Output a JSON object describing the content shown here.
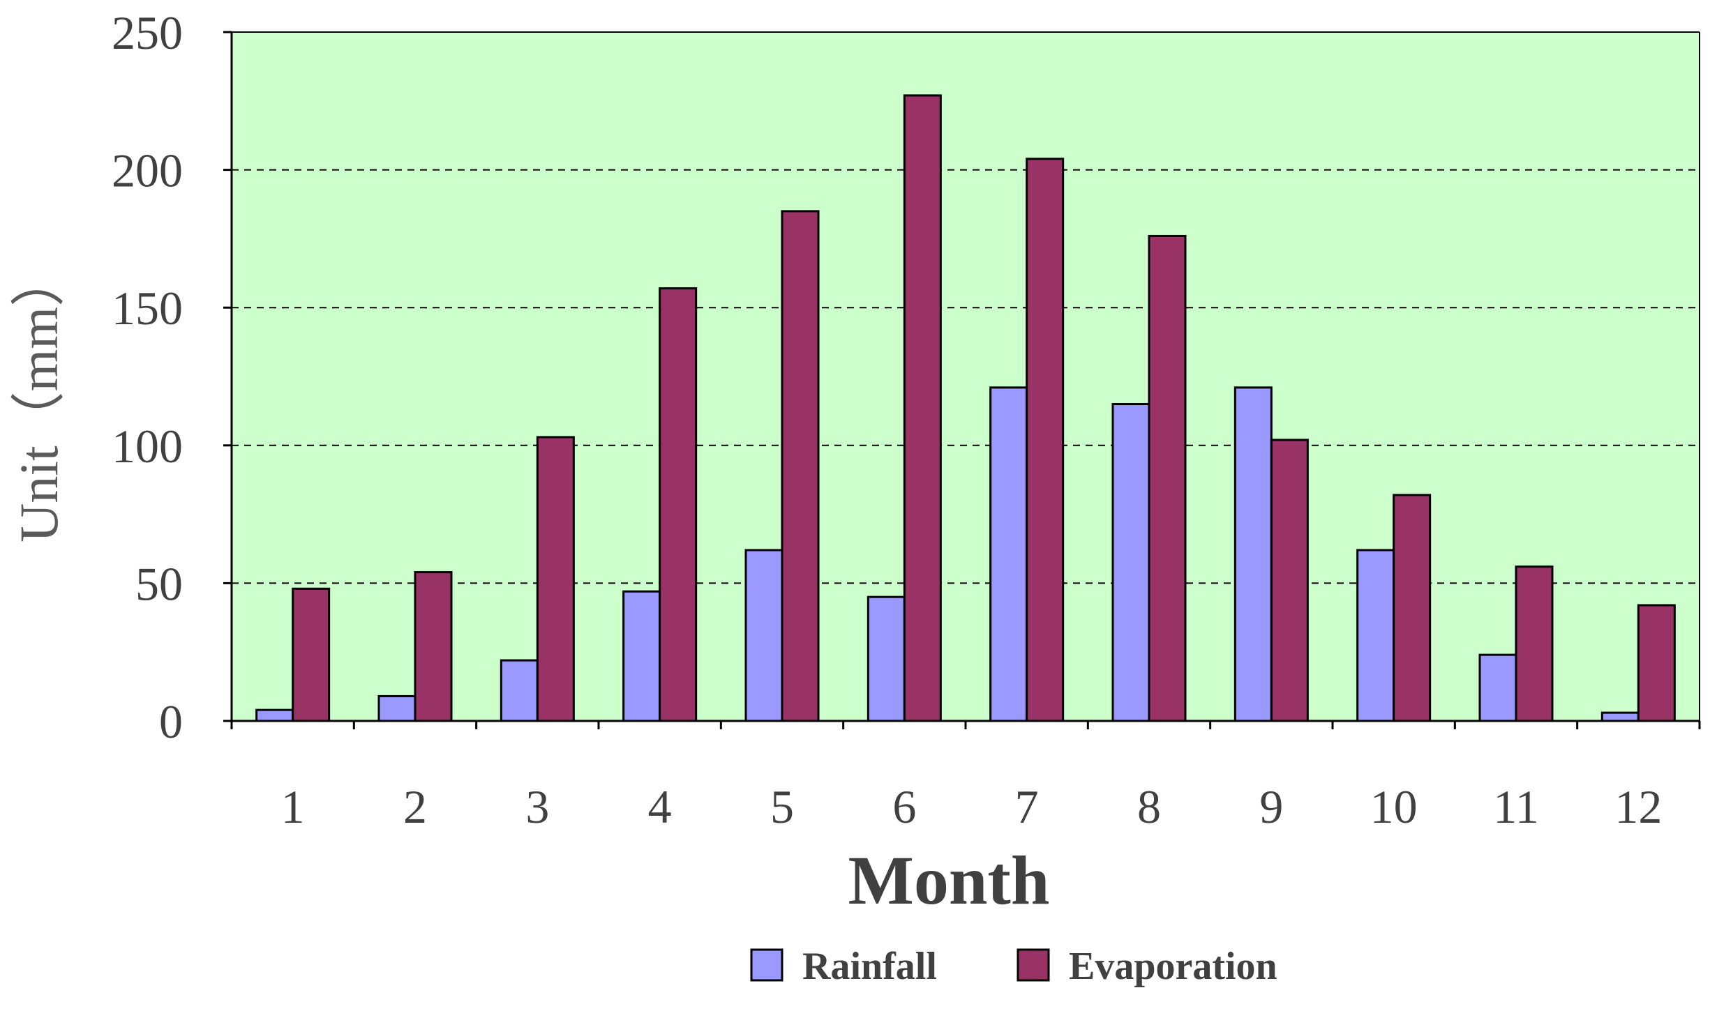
{
  "chart_data": {
    "type": "bar",
    "title": "",
    "xlabel": "Month",
    "ylabel": "Unit（mm）",
    "ylim": [
      0,
      250
    ],
    "yticks": [
      "0",
      "50",
      "100",
      "150",
      "200",
      "250"
    ],
    "categories": [
      "1",
      "2",
      "3",
      "4",
      "5",
      "6",
      "7",
      "8",
      "9",
      "10",
      "11",
      "12"
    ],
    "grid": "horizontal dashed at 50, 100, 150, 200",
    "legend_position": "bottom",
    "plot_background": "#ccffcc",
    "series": [
      {
        "name": "Rainfall",
        "color": "#9999ff",
        "values": [
          4,
          9,
          22,
          47,
          62,
          45,
          121,
          115,
          121,
          62,
          24,
          3
        ]
      },
      {
        "name": "Evaporation",
        "color": "#993366",
        "values": [
          48,
          54,
          103,
          157,
          185,
          227,
          204,
          176,
          102,
          82,
          56,
          42
        ]
      }
    ]
  }
}
